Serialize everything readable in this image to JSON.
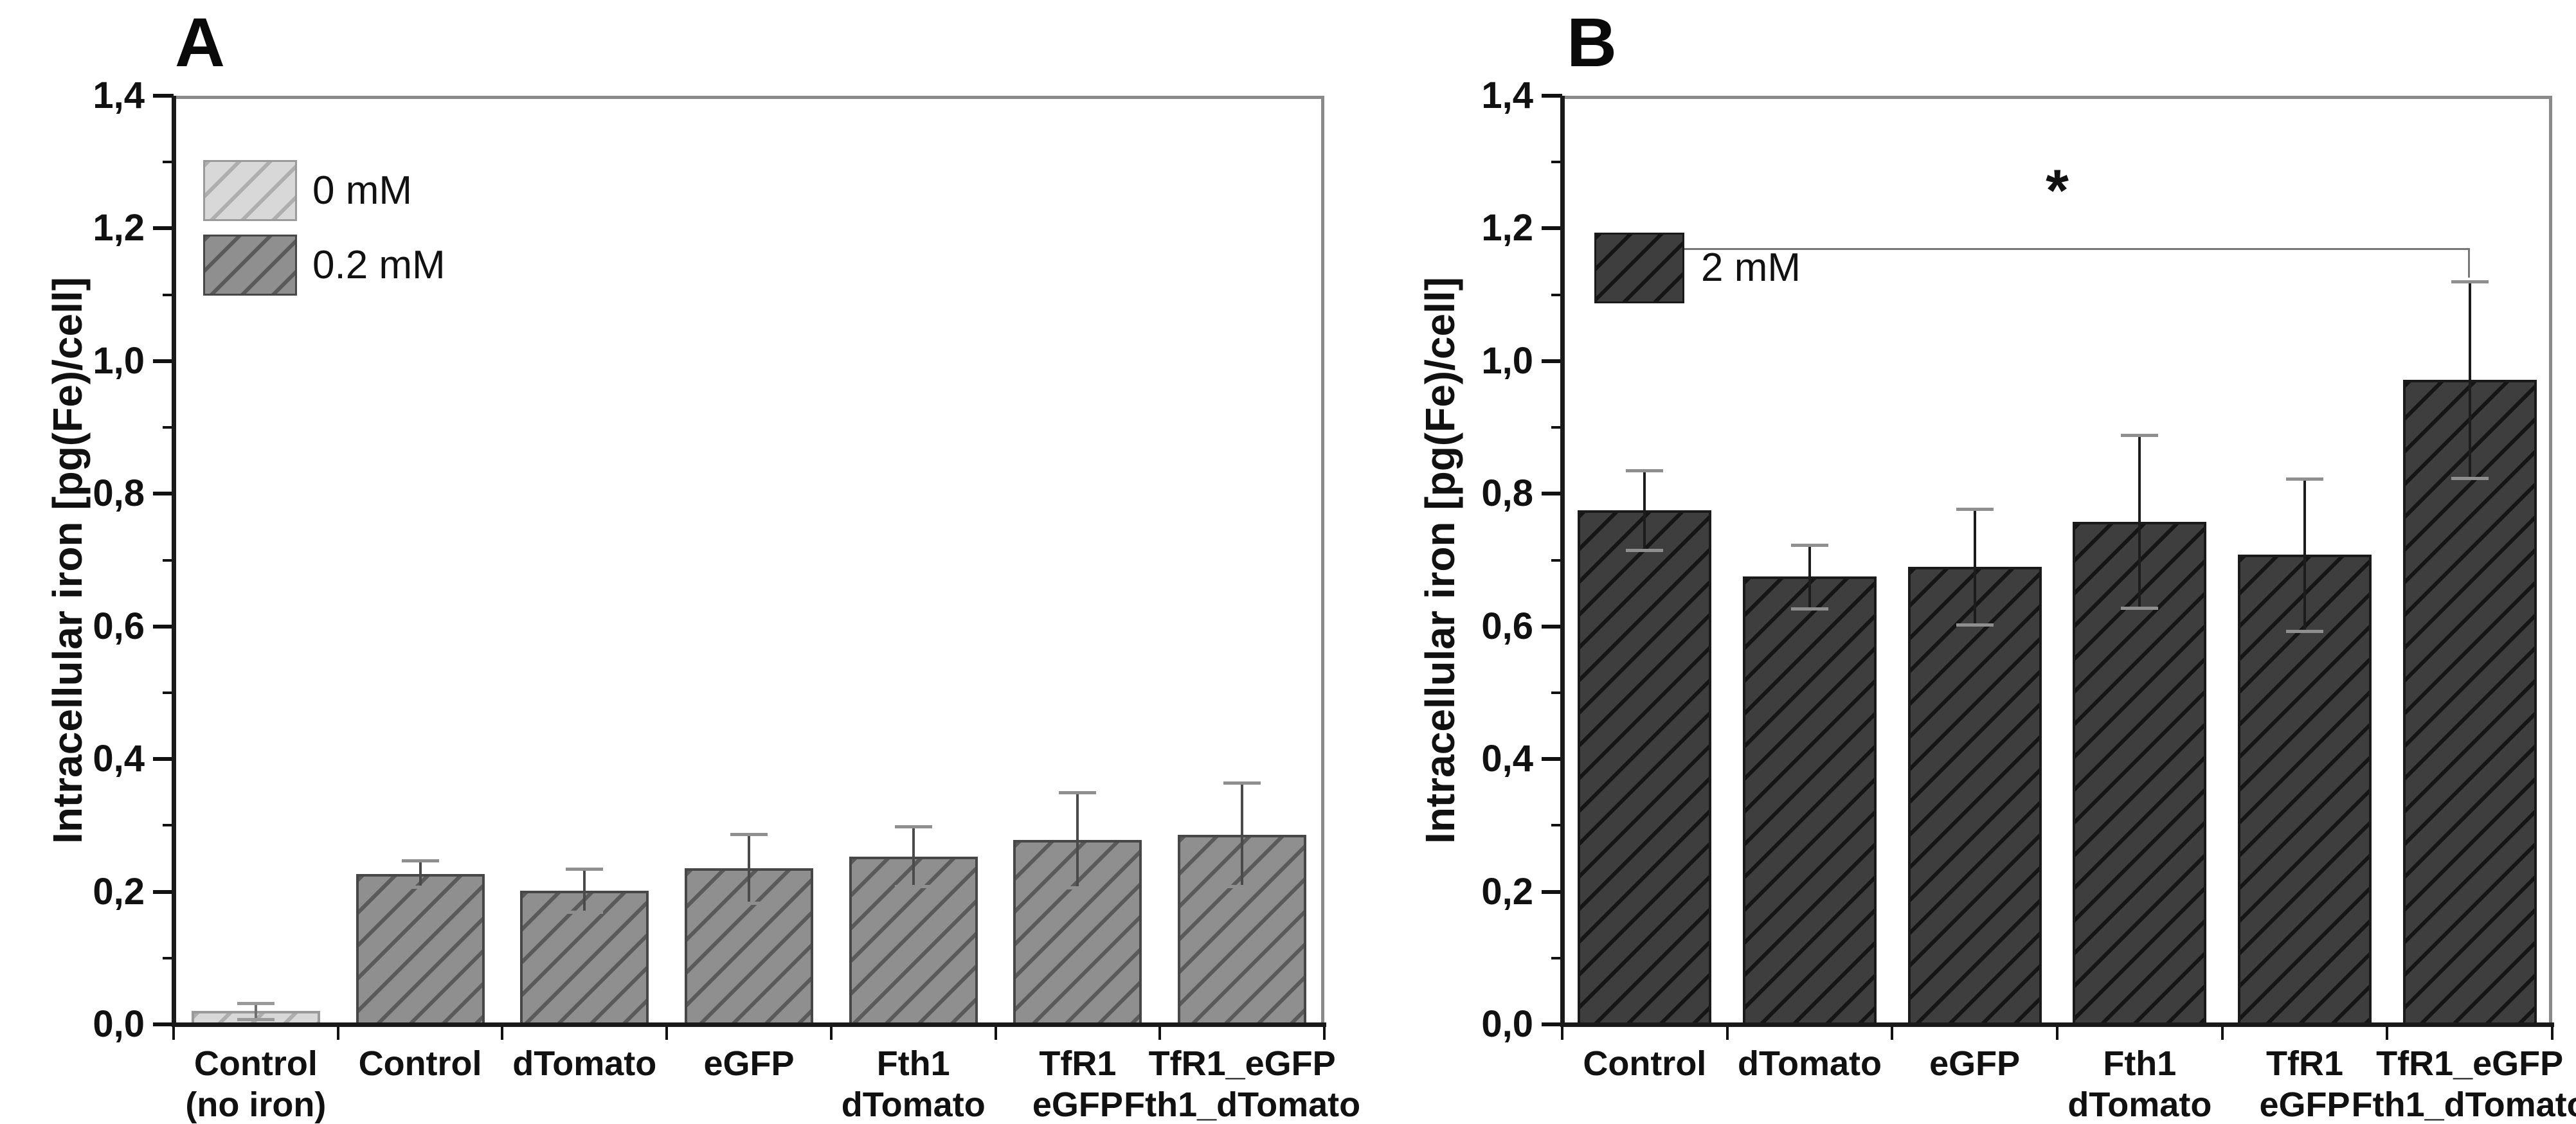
{
  "figure": {
    "background": "#ffffff",
    "panel_labels": [
      "A",
      "B"
    ]
  },
  "chart_data": [
    {
      "type": "bar",
      "panel_label": "A",
      "title": "",
      "xlabel": "",
      "ylabel": "Intracellular iron [pg(Fe)/cell]",
      "ylim": [
        0,
        1.4
      ],
      "y_major_step": 0.2,
      "y_minor_step": 0.1,
      "y_tick_labels": [
        "0,0",
        "0,2",
        "0,4",
        "0,6",
        "0,8",
        "1,0",
        "1,2",
        "1,4"
      ],
      "decimal_separator": ",",
      "grid": false,
      "legend_position": "top-left-inside",
      "legend": [
        {
          "name": "0 mM",
          "fill": "#d8d8d8",
          "hatch": "#aeaeae",
          "border": "#9a9a9a",
          "error_stem": "#6f6f6f",
          "error_cap": "#9a9a9a"
        },
        {
          "name": "0.2 mM",
          "fill": "#8f8f8f",
          "hatch": "#5a5a5a",
          "border": "#474747",
          "error_stem": "#4a4a4a",
          "error_cap": "#8f8f8f"
        }
      ],
      "categories": [
        "Control\n(no iron)",
        "Control",
        "dTomato",
        "eGFP",
        "Fth1\ndTomato",
        "TfR1\neGFP",
        "TfR1_eGFP\nFth1_dTomato"
      ],
      "bars": [
        {
          "category": "Control\n(no iron)",
          "series": "0 mM",
          "value": 0.02,
          "error": 0.012
        },
        {
          "category": "Control",
          "series": "0.2 mM",
          "value": 0.227,
          "error": 0.02
        },
        {
          "category": "dTomato",
          "series": "0.2 mM",
          "value": 0.202,
          "error": 0.032
        },
        {
          "category": "eGFP",
          "series": "0.2 mM",
          "value": 0.235,
          "error": 0.052
        },
        {
          "category": "Fth1\ndTomato",
          "series": "0.2 mM",
          "value": 0.253,
          "error": 0.045
        },
        {
          "category": "TfR1\neGFP",
          "series": "0.2 mM",
          "value": 0.278,
          "error": 0.072
        },
        {
          "category": "TfR1_eGFP\nFth1_dTomato",
          "series": "0.2 mM",
          "value": 0.286,
          "error": 0.078
        }
      ]
    },
    {
      "type": "bar",
      "panel_label": "B",
      "title": "",
      "xlabel": "",
      "ylabel": "Intracellular iron [pg(Fe)/cell]",
      "ylim": [
        0,
        1.4
      ],
      "y_major_step": 0.2,
      "y_minor_step": 0.1,
      "y_tick_labels": [
        "0,0",
        "0,2",
        "0,4",
        "0,6",
        "0,8",
        "1,0",
        "1,2",
        "1,4"
      ],
      "decimal_separator": ",",
      "grid": false,
      "legend_position": "top-left-inside",
      "legend": [
        {
          "name": "2 mM",
          "fill": "#3e3e3e",
          "hatch": "#151515",
          "border": "#1a1a1a",
          "error_stem": "#1c1c1c",
          "error_cap": "#8f8f8f"
        }
      ],
      "categories": [
        "Control",
        "dTomato",
        "eGFP",
        "Fth1\ndTomato",
        "TfR1\neGFP",
        "TfR1_eGFP\nFth1_dTomato"
      ],
      "bars": [
        {
          "category": "Control",
          "series": "2 mM",
          "value": 0.775,
          "error": 0.06
        },
        {
          "category": "dTomato",
          "series": "2 mM",
          "value": 0.675,
          "error": 0.048
        },
        {
          "category": "eGFP",
          "series": "2 mM",
          "value": 0.69,
          "error": 0.087
        },
        {
          "category": "Fth1\ndTomato",
          "series": "2 mM",
          "value": 0.758,
          "error": 0.13
        },
        {
          "category": "TfR1\neGFP",
          "series": "2 mM",
          "value": 0.708,
          "error": 0.115
        },
        {
          "category": "TfR1_eGFP\nFth1_dTomato",
          "series": "2 mM",
          "value": 0.972,
          "error": 0.148
        }
      ],
      "significance": {
        "symbol": "*",
        "from_category": "Control",
        "to_category": "TfR1_eGFP\nFth1_dTomato",
        "level": 1.17
      }
    }
  ]
}
